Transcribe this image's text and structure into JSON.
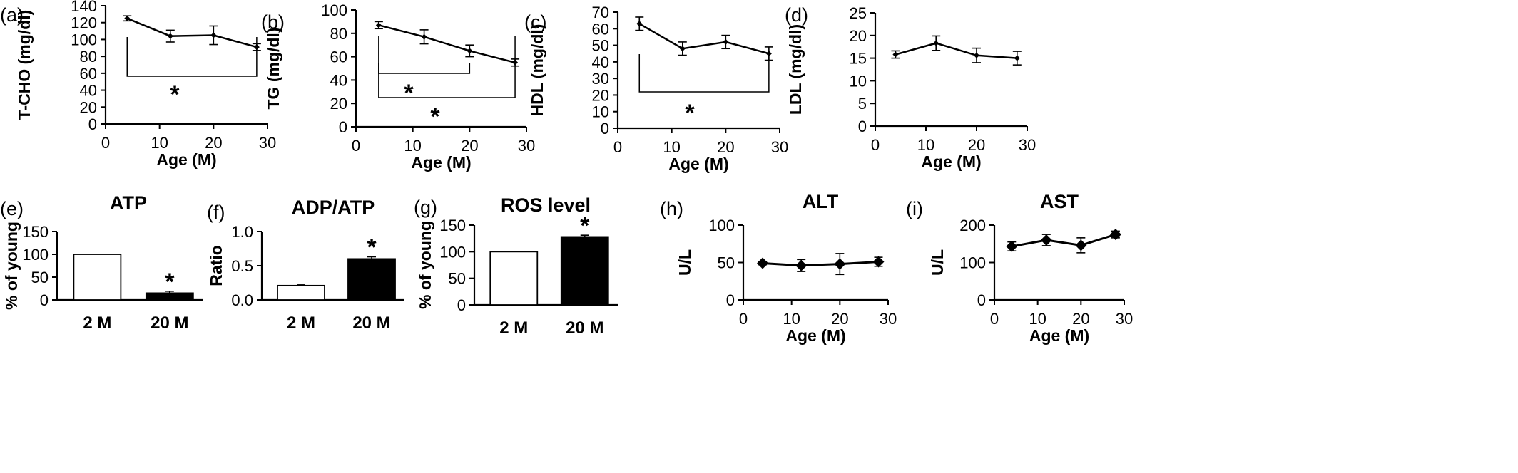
{
  "chart_data": [
    {
      "panel": "(a)",
      "type": "line",
      "title": "",
      "xlabel": "Age (M)",
      "ylabel": "T-CHO (mg/dl)",
      "xlim": [
        0,
        30
      ],
      "ylim": [
        0,
        140
      ],
      "xticks": [
        0,
        10,
        20,
        30
      ],
      "yticks": [
        0,
        20,
        40,
        60,
        80,
        100,
        120,
        140
      ],
      "series": [
        {
          "x": [
            4,
            12,
            20,
            28
          ],
          "y": [
            125,
            104,
            105,
            91
          ],
          "err": [
            3,
            7,
            11,
            4
          ]
        }
      ],
      "annotations": [
        {
          "text": "*",
          "type": "bracket",
          "from": 4,
          "to": 28
        }
      ]
    },
    {
      "panel": "(b)",
      "type": "line",
      "title": "",
      "xlabel": "Age (M)",
      "ylabel": "TG (mg/dl)",
      "xlim": [
        0,
        30
      ],
      "ylim": [
        0,
        100
      ],
      "xticks": [
        0,
        10,
        20,
        30
      ],
      "yticks": [
        0,
        20,
        40,
        60,
        80,
        100
      ],
      "series": [
        {
          "x": [
            4,
            12,
            20,
            28
          ],
          "y": [
            87,
            77,
            65,
            55
          ],
          "err": [
            3,
            6,
            5,
            3
          ]
        }
      ],
      "annotations": [
        {
          "text": "*",
          "type": "bracket",
          "from": 4,
          "to": 20
        },
        {
          "text": "*",
          "type": "bracket",
          "from": 4,
          "to": 28
        }
      ]
    },
    {
      "panel": "(c)",
      "type": "line",
      "title": "",
      "xlabel": "Age (M)",
      "ylabel": "HDL (mg/dl)",
      "xlim": [
        0,
        30
      ],
      "ylim": [
        0,
        70
      ],
      "xticks": [
        0,
        10,
        20,
        30
      ],
      "yticks": [
        0,
        10,
        20,
        30,
        40,
        50,
        60,
        70
      ],
      "series": [
        {
          "x": [
            4,
            12,
            20,
            28
          ],
          "y": [
            63,
            48,
            52,
            45
          ],
          "err": [
            4,
            4,
            4,
            4
          ]
        }
      ],
      "annotations": [
        {
          "text": "*",
          "type": "bracket",
          "from": 4,
          "to": 28
        }
      ]
    },
    {
      "panel": "(d)",
      "type": "line",
      "title": "",
      "xlabel": "Age (M)",
      "ylabel": "LDL (mg/dl)",
      "xlim": [
        0,
        30
      ],
      "ylim": [
        0,
        25
      ],
      "xticks": [
        0,
        10,
        20,
        30
      ],
      "yticks": [
        0,
        5,
        10,
        15,
        20,
        25
      ],
      "series": [
        {
          "x": [
            4,
            12,
            20,
            28
          ],
          "y": [
            15.8,
            18.3,
            15.6,
            15
          ],
          "err": [
            0.8,
            1.6,
            1.6,
            1.5
          ]
        }
      ],
      "annotations": []
    },
    {
      "panel": "(e)",
      "type": "bar",
      "title": "ATP",
      "xlabel": "",
      "ylabel": "% of young",
      "ylim": [
        0,
        150
      ],
      "yticks": [
        0,
        50,
        100,
        150
      ],
      "categories": [
        "2 M",
        "20 M"
      ],
      "values": [
        100,
        15
      ],
      "err": [
        0,
        4
      ],
      "fills": [
        "#ffffff",
        "#000000"
      ],
      "annotations": [
        {
          "text": "*",
          "category": "20 M"
        }
      ]
    },
    {
      "panel": "(f)",
      "type": "bar",
      "title": "ADP/ATP",
      "xlabel": "",
      "ylabel": "Ratio",
      "ylim": [
        0,
        1.0
      ],
      "yticks": [
        0.0,
        0.5,
        1.0
      ],
      "ytick_labels": [
        "0.0",
        "0.5",
        "1.0"
      ],
      "categories": [
        "2 M",
        "20 M"
      ],
      "values": [
        0.21,
        0.6
      ],
      "err": [
        0.01,
        0.03
      ],
      "fills": [
        "#ffffff",
        "#000000"
      ],
      "annotations": [
        {
          "text": "*",
          "category": "20 M"
        }
      ]
    },
    {
      "panel": "(g)",
      "type": "bar",
      "title": "ROS level",
      "xlabel": "",
      "ylabel": "% of young",
      "ylim": [
        0,
        150
      ],
      "yticks": [
        0,
        50,
        100,
        150
      ],
      "categories": [
        "2 M",
        "20 M"
      ],
      "values": [
        100,
        128
      ],
      "err": [
        0,
        3
      ],
      "fills": [
        "#ffffff",
        "#000000"
      ],
      "annotations": [
        {
          "text": "*",
          "category": "20 M"
        }
      ]
    },
    {
      "panel": "(h)",
      "type": "line",
      "title": "ALT",
      "xlabel": "Age (M)",
      "ylabel": "U/L",
      "xlim": [
        0,
        30
      ],
      "ylim": [
        0,
        100
      ],
      "xticks": [
        0,
        10,
        20,
        30
      ],
      "yticks": [
        0,
        50,
        100
      ],
      "series": [
        {
          "x": [
            4,
            12,
            20,
            28
          ],
          "y": [
            49,
            46,
            48,
            51
          ],
          "err": [
            2,
            8,
            14,
            6
          ]
        }
      ],
      "annotations": []
    },
    {
      "panel": "(i)",
      "type": "line",
      "title": "AST",
      "xlabel": "Age (M)",
      "ylabel": "U/L",
      "xlim": [
        0,
        30
      ],
      "ylim": [
        0,
        200
      ],
      "xticks": [
        0,
        10,
        20,
        30
      ],
      "yticks": [
        0,
        100,
        200
      ],
      "series": [
        {
          "x": [
            4,
            12,
            20,
            28
          ],
          "y": [
            143,
            160,
            146,
            175
          ],
          "err": [
            12,
            15,
            20,
            9
          ]
        }
      ],
      "annotations": []
    }
  ]
}
